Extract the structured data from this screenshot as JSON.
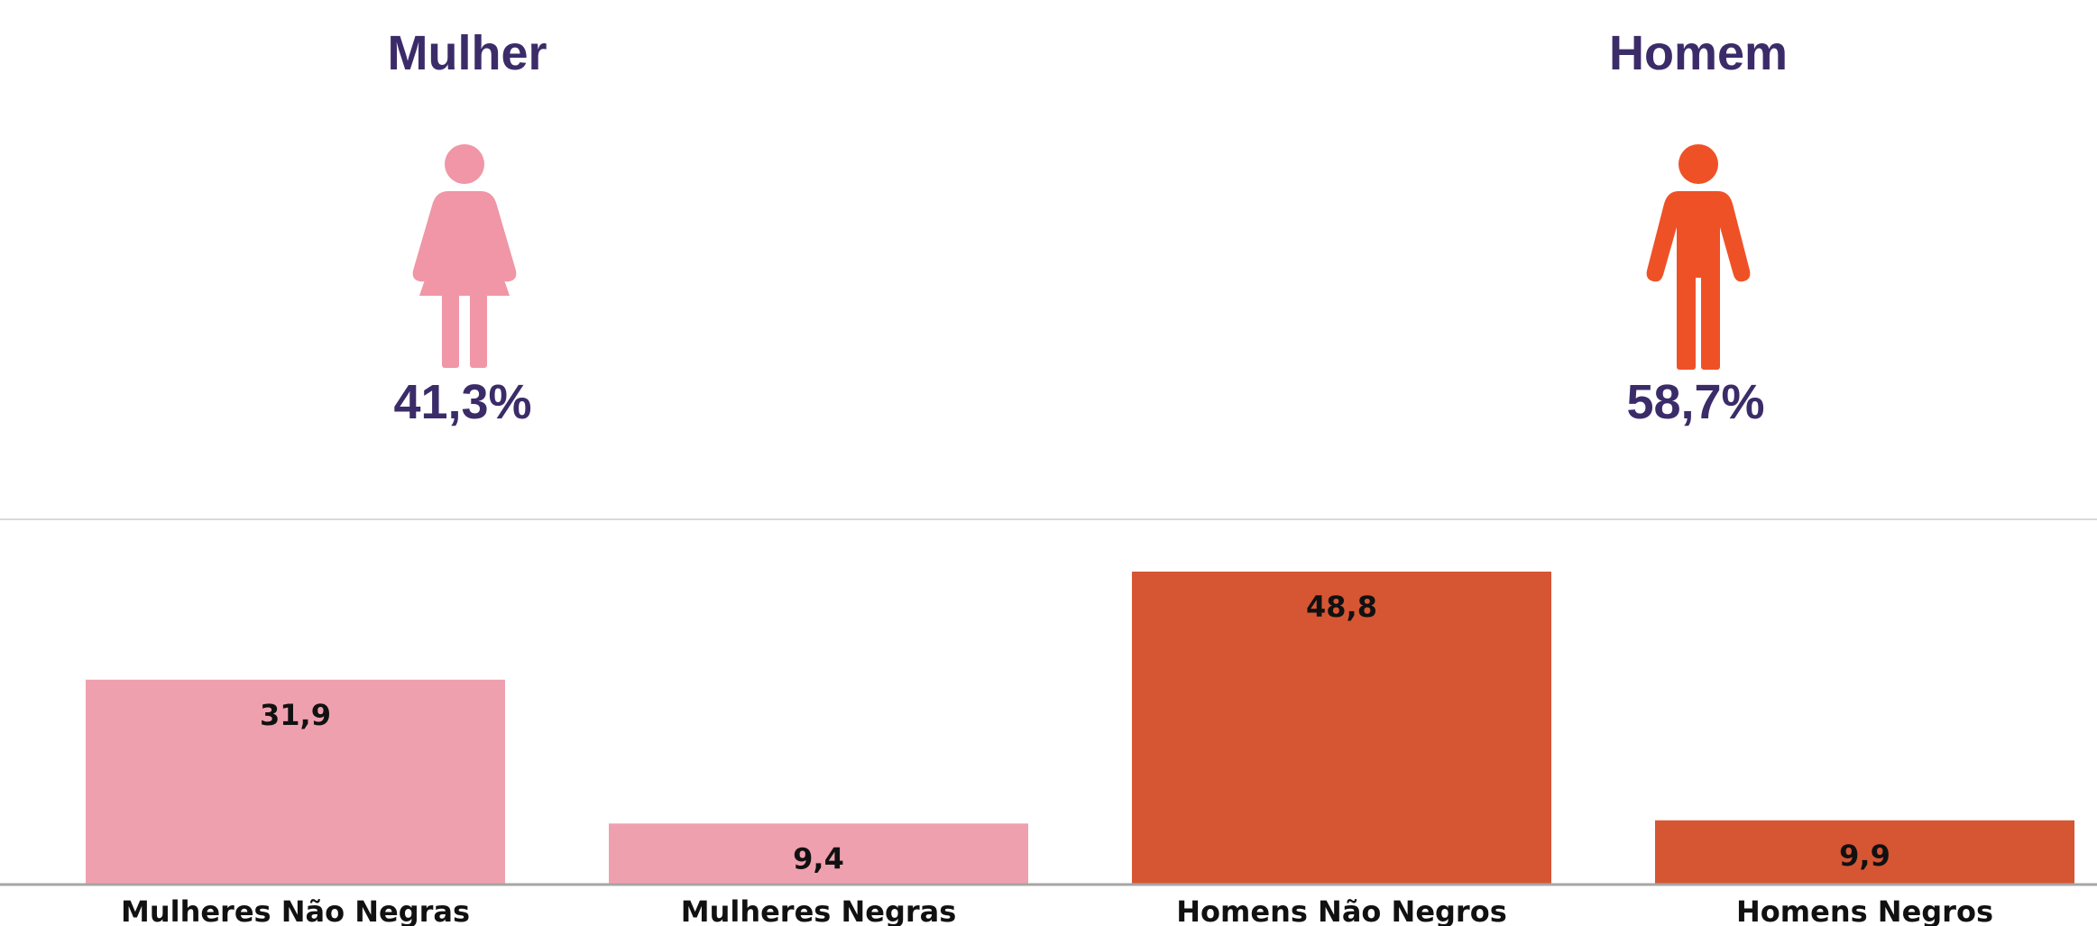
{
  "genders": [
    {
      "label": "Mulher",
      "percent": "41,3%",
      "icon": "woman-icon",
      "color": "#f096a6"
    },
    {
      "label": "Homem",
      "percent": "58,7%",
      "icon": "man-icon",
      "color": "#ef5127"
    }
  ],
  "chart_data": {
    "type": "bar",
    "categories": [
      "Mulheres Não Negras",
      "Mulheres Negras",
      "Homens Não Negros",
      "Homens Negros"
    ],
    "values": [
      31.9,
      9.4,
      48.8,
      9.9
    ],
    "value_labels": [
      "31,9",
      "9,4",
      "48,8",
      "9,9"
    ],
    "colors": [
      "#efa0ae",
      "#efa0ae",
      "#d65633",
      "#d65633"
    ],
    "ylim": [
      0,
      55
    ],
    "grid": false,
    "title": "",
    "xlabel": "",
    "ylabel": ""
  }
}
